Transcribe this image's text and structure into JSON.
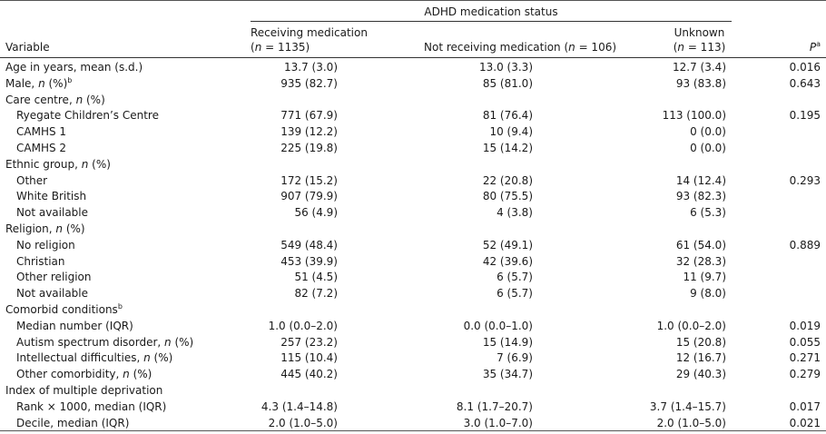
{
  "header": {
    "group_title": "ADHD medication status",
    "variable": "Variable",
    "col1_line1": "Receiving medication",
    "col1_n": "n",
    "col1_rest": " = 1135)",
    "col2_pre": "Not receiving medication (",
    "col2_n": "n",
    "col2_rest": " = 106)",
    "col3_line1": "Unknown",
    "col3_n": "n",
    "col3_rest": " = 113)",
    "p_label": "P",
    "p_sup": "a",
    "paren_open": "("
  },
  "rows": [
    {
      "label": "Age in years, mean (s.d.)",
      "ital": "",
      "after": "",
      "sup": "",
      "indent": false,
      "c1": "13.7 (3.0)",
      "c2": "13.0 (3.3)",
      "c3": "12.7 (3.4)",
      "p": "0.016"
    },
    {
      "label": "Male, ",
      "ital": "n",
      "after": " (%)",
      "sup": "b",
      "indent": false,
      "c1": "935 (82.7)",
      "c2": "85 (81.0)",
      "c3": "93 (83.8)",
      "p": "0.643"
    },
    {
      "label": "Care centre, ",
      "ital": "n",
      "after": " (%)",
      "sup": "",
      "indent": false,
      "c1": "",
      "c2": "",
      "c3": "",
      "p": ""
    },
    {
      "label": "Ryegate Children’s Centre",
      "ital": "",
      "after": "",
      "sup": "",
      "indent": true,
      "c1": "771 (67.9)",
      "c2": "81 (76.4)",
      "c3": "113 (100.0)",
      "p": "0.195"
    },
    {
      "label": "CAMHS 1",
      "ital": "",
      "after": "",
      "sup": "",
      "indent": true,
      "c1": "139 (12.2)",
      "c2": "10 (9.4)",
      "c3": "0 (0.0)",
      "p": ""
    },
    {
      "label": "CAMHS 2",
      "ital": "",
      "after": "",
      "sup": "",
      "indent": true,
      "c1": "225 (19.8)",
      "c2": "15 (14.2)",
      "c3": "0 (0.0)",
      "p": ""
    },
    {
      "label": "Ethnic group, ",
      "ital": "n",
      "after": " (%)",
      "sup": "",
      "indent": false,
      "c1": "",
      "c2": "",
      "c3": "",
      "p": ""
    },
    {
      "label": "Other",
      "ital": "",
      "after": "",
      "sup": "",
      "indent": true,
      "c1": "172 (15.2)",
      "c2": "22 (20.8)",
      "c3": "14 (12.4)",
      "p": "0.293"
    },
    {
      "label": "White British",
      "ital": "",
      "after": "",
      "sup": "",
      "indent": true,
      "c1": "907 (79.9)",
      "c2": "80 (75.5)",
      "c3": "93 (82.3)",
      "p": ""
    },
    {
      "label": "Not available",
      "ital": "",
      "after": "",
      "sup": "",
      "indent": true,
      "c1": "56 (4.9)",
      "c2": "4 (3.8)",
      "c3": "6 (5.3)",
      "p": ""
    },
    {
      "label": "Religion, ",
      "ital": "n",
      "after": " (%)",
      "sup": "",
      "indent": false,
      "c1": "",
      "c2": "",
      "c3": "",
      "p": ""
    },
    {
      "label": "No religion",
      "ital": "",
      "after": "",
      "sup": "",
      "indent": true,
      "c1": "549 (48.4)",
      "c2": "52 (49.1)",
      "c3": "61 (54.0)",
      "p": "0.889"
    },
    {
      "label": "Christian",
      "ital": "",
      "after": "",
      "sup": "",
      "indent": true,
      "c1": "453 (39.9)",
      "c2": "42 (39.6)",
      "c3": "32 (28.3)",
      "p": ""
    },
    {
      "label": "Other religion",
      "ital": "",
      "after": "",
      "sup": "",
      "indent": true,
      "c1": "51 (4.5)",
      "c2": "6 (5.7)",
      "c3": "11 (9.7)",
      "p": ""
    },
    {
      "label": "Not available",
      "ital": "",
      "after": "",
      "sup": "",
      "indent": true,
      "c1": "82 (7.2)",
      "c2": "6 (5.7)",
      "c3": "9 (8.0)",
      "p": ""
    },
    {
      "label": "Comorbid conditions",
      "ital": "",
      "after": "",
      "sup": "b",
      "indent": false,
      "c1": "",
      "c2": "",
      "c3": "",
      "p": ""
    },
    {
      "label": "Median number (IQR)",
      "ital": "",
      "after": "",
      "sup": "",
      "indent": true,
      "c1": "1.0 (0.0–2.0)",
      "c2": "0.0 (0.0–1.0)",
      "c3": "1.0 (0.0–2.0)",
      "p": "0.019"
    },
    {
      "label": "Autism spectrum disorder, ",
      "ital": "n",
      "after": " (%)",
      "sup": "",
      "indent": true,
      "c1": "257 (23.2)",
      "c2": "15 (14.9)",
      "c3": "15 (20.8)",
      "p": "0.055"
    },
    {
      "label": "Intellectual difficulties, ",
      "ital": "n",
      "after": " (%)",
      "sup": "",
      "indent": true,
      "c1": "115 (10.4)",
      "c2": "7 (6.9)",
      "c3": "12 (16.7)",
      "p": "0.271"
    },
    {
      "label": "Other comorbidity, ",
      "ital": "n",
      "after": " (%)",
      "sup": "",
      "indent": true,
      "c1": "445 (40.2)",
      "c2": "35 (34.7)",
      "c3": "29 (40.3)",
      "p": "0.279"
    },
    {
      "label": "Index of multiple deprivation",
      "ital": "",
      "after": "",
      "sup": "",
      "indent": false,
      "c1": "",
      "c2": "",
      "c3": "",
      "p": ""
    },
    {
      "label": "Rank × 1000, median (IQR)",
      "ital": "",
      "after": "",
      "sup": "",
      "indent": true,
      "c1": "4.3 (1.4–14.8)",
      "c2": "8.1 (1.7–20.7)",
      "c3": "3.7 (1.4–15.7)",
      "p": "0.017"
    },
    {
      "label": "Decile, median (IQR)",
      "ital": "",
      "after": "",
      "sup": "",
      "indent": true,
      "c1": "2.0 (1.0–5.0)",
      "c2": "3.0 (1.0–7.0)",
      "c3": "2.0 (1.0–5.0)",
      "p": "0.021"
    }
  ]
}
